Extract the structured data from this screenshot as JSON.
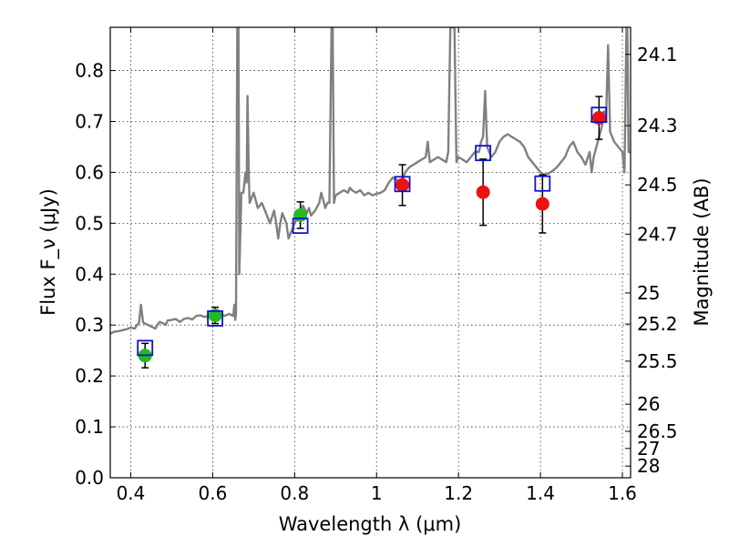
{
  "chart_data": {
    "type": "scatter",
    "xlabel": "Wavelength λ (μm)",
    "ylabel": "Flux F_ν (μJy)",
    "y2label": "Magnitude (AB)",
    "xlim": [
      0.35,
      1.62
    ],
    "ylim": [
      0.0,
      0.885
    ],
    "grid": true,
    "x_ticks": [
      0.4,
      0.6,
      0.8,
      1.0,
      1.2,
      1.4,
      1.6
    ],
    "x_tick_labels": [
      "0.4",
      "0.6",
      "0.8",
      "1",
      "1.2",
      "1.4",
      "1.6"
    ],
    "y_ticks": [
      0.0,
      0.1,
      0.2,
      0.3,
      0.4,
      0.5,
      0.6,
      0.7,
      0.8
    ],
    "y_tick_labels": [
      "0.0",
      "0.1",
      "0.2",
      "0.3",
      "0.4",
      "0.5",
      "0.6",
      "0.7",
      "0.8"
    ],
    "mag_ticks": [
      24.1,
      24.3,
      24.5,
      24.7,
      25,
      25.2,
      25.5,
      26,
      26.5,
      27,
      28
    ],
    "mag_tick_labels": [
      "24.1",
      "24.3",
      "24.5",
      "24.7",
      "25",
      "25.2",
      "25.5",
      "26",
      "26.5",
      "27",
      "28"
    ],
    "model_color": "#808080",
    "model_spectrum": [
      [
        0.35,
        0.283
      ],
      [
        0.36,
        0.287
      ],
      [
        0.37,
        0.288
      ],
      [
        0.38,
        0.29
      ],
      [
        0.39,
        0.292
      ],
      [
        0.4,
        0.295
      ],
      [
        0.41,
        0.293
      ],
      [
        0.415,
        0.3
      ],
      [
        0.42,
        0.304
      ],
      [
        0.425,
        0.34
      ],
      [
        0.43,
        0.305
      ],
      [
        0.44,
        0.301
      ],
      [
        0.45,
        0.297
      ],
      [
        0.46,
        0.293
      ],
      [
        0.465,
        0.3
      ],
      [
        0.47,
        0.306
      ],
      [
        0.48,
        0.303
      ],
      [
        0.485,
        0.3
      ],
      [
        0.49,
        0.309
      ],
      [
        0.5,
        0.31
      ],
      [
        0.51,
        0.312
      ],
      [
        0.52,
        0.306
      ],
      [
        0.53,
        0.312
      ],
      [
        0.54,
        0.314
      ],
      [
        0.55,
        0.311
      ],
      [
        0.56,
        0.318
      ],
      [
        0.57,
        0.319
      ],
      [
        0.58,
        0.316
      ],
      [
        0.59,
        0.318
      ],
      [
        0.6,
        0.32
      ],
      [
        0.61,
        0.318
      ],
      [
        0.62,
        0.321
      ],
      [
        0.63,
        0.318
      ],
      [
        0.64,
        0.322
      ],
      [
        0.645,
        0.32
      ],
      [
        0.65,
        0.318
      ],
      [
        0.653,
        0.34
      ],
      [
        0.655,
        0.31
      ],
      [
        0.657,
        0.32
      ],
      [
        0.66,
        0.885
      ],
      [
        0.663,
        0.885
      ],
      [
        0.665,
        0.4
      ],
      [
        0.67,
        0.56
      ],
      [
        0.675,
        0.56
      ],
      [
        0.68,
        0.6
      ],
      [
        0.683,
        0.58
      ],
      [
        0.685,
        0.75
      ],
      [
        0.688,
        0.6
      ],
      [
        0.69,
        0.54
      ],
      [
        0.7,
        0.56
      ],
      [
        0.71,
        0.53
      ],
      [
        0.72,
        0.54
      ],
      [
        0.73,
        0.52
      ],
      [
        0.74,
        0.5
      ],
      [
        0.75,
        0.525
      ],
      [
        0.755,
        0.5
      ],
      [
        0.76,
        0.47
      ],
      [
        0.765,
        0.5
      ],
      [
        0.77,
        0.52
      ],
      [
        0.78,
        0.5
      ],
      [
        0.785,
        0.47
      ],
      [
        0.79,
        0.48
      ],
      [
        0.8,
        0.5
      ],
      [
        0.81,
        0.515
      ],
      [
        0.82,
        0.535
      ],
      [
        0.83,
        0.52
      ],
      [
        0.835,
        0.53
      ],
      [
        0.84,
        0.515
      ],
      [
        0.85,
        0.525
      ],
      [
        0.86,
        0.54
      ],
      [
        0.865,
        0.56
      ],
      [
        0.87,
        0.545
      ],
      [
        0.875,
        0.53
      ],
      [
        0.88,
        0.54
      ],
      [
        0.885,
        0.54
      ],
      [
        0.89,
        0.885
      ],
      [
        0.893,
        0.885
      ],
      [
        0.896,
        0.54
      ],
      [
        0.9,
        0.555
      ],
      [
        0.91,
        0.56
      ],
      [
        0.92,
        0.565
      ],
      [
        0.93,
        0.56
      ],
      [
        0.935,
        0.57
      ],
      [
        0.94,
        0.565
      ],
      [
        0.95,
        0.56
      ],
      [
        0.96,
        0.565
      ],
      [
        0.97,
        0.555
      ],
      [
        0.98,
        0.56
      ],
      [
        0.99,
        0.555
      ],
      [
        1.0,
        0.558
      ],
      [
        1.01,
        0.56
      ],
      [
        1.02,
        0.565
      ],
      [
        1.03,
        0.58
      ],
      [
        1.04,
        0.59
      ],
      [
        1.05,
        0.585
      ],
      [
        1.06,
        0.58
      ],
      [
        1.07,
        0.6
      ],
      [
        1.08,
        0.61
      ],
      [
        1.09,
        0.615
      ],
      [
        1.1,
        0.62
      ],
      [
        1.11,
        0.625
      ],
      [
        1.12,
        0.63
      ],
      [
        1.125,
        0.66
      ],
      [
        1.13,
        0.62
      ],
      [
        1.14,
        0.625
      ],
      [
        1.15,
        0.63
      ],
      [
        1.16,
        0.625
      ],
      [
        1.17,
        0.62
      ],
      [
        1.175,
        0.64
      ],
      [
        1.18,
        0.885
      ],
      [
        1.19,
        0.885
      ],
      [
        1.195,
        0.62
      ],
      [
        1.2,
        0.63
      ],
      [
        1.21,
        0.625
      ],
      [
        1.22,
        0.62
      ],
      [
        1.23,
        0.63
      ],
      [
        1.24,
        0.64
      ],
      [
        1.25,
        0.64
      ],
      [
        1.255,
        0.66
      ],
      [
        1.26,
        0.67
      ],
      [
        1.265,
        0.76
      ],
      [
        1.27,
        0.65
      ],
      [
        1.28,
        0.63
      ],
      [
        1.29,
        0.64
      ],
      [
        1.3,
        0.66
      ],
      [
        1.31,
        0.67
      ],
      [
        1.32,
        0.675
      ],
      [
        1.33,
        0.67
      ],
      [
        1.34,
        0.665
      ],
      [
        1.35,
        0.66
      ],
      [
        1.36,
        0.65
      ],
      [
        1.37,
        0.63
      ],
      [
        1.38,
        0.62
      ],
      [
        1.39,
        0.61
      ],
      [
        1.4,
        0.6
      ],
      [
        1.41,
        0.595
      ],
      [
        1.42,
        0.598
      ],
      [
        1.43,
        0.603
      ],
      [
        1.44,
        0.61
      ],
      [
        1.45,
        0.62
      ],
      [
        1.46,
        0.63
      ],
      [
        1.47,
        0.65
      ],
      [
        1.48,
        0.66
      ],
      [
        1.49,
        0.64
      ],
      [
        1.5,
        0.63
      ],
      [
        1.51,
        0.615
      ],
      [
        1.52,
        0.64
      ],
      [
        1.525,
        0.6
      ],
      [
        1.53,
        0.63
      ],
      [
        1.54,
        0.66
      ],
      [
        1.55,
        0.69
      ],
      [
        1.555,
        0.72
      ],
      [
        1.56,
        0.7
      ],
      [
        1.565,
        0.85
      ],
      [
        1.57,
        0.68
      ],
      [
        1.58,
        0.66
      ],
      [
        1.59,
        0.65
      ],
      [
        1.6,
        0.64
      ],
      [
        1.605,
        0.6
      ],
      [
        1.61,
        0.885
      ],
      [
        1.612,
        0.885
      ],
      [
        1.615,
        0.64
      ],
      [
        1.62,
        0.64
      ]
    ],
    "series": [
      {
        "marker": "circle",
        "color": "#22bb22",
        "points": [
          {
            "x": 0.435,
            "y": 0.24,
            "yerr": 0.024
          },
          {
            "x": 0.606,
            "y": 0.319,
            "yerr": 0.016
          },
          {
            "x": 0.814,
            "y": 0.516,
            "yerr": 0.026
          }
        ]
      },
      {
        "marker": "circle",
        "color": "#ee1111",
        "points": [
          {
            "x": 1.063,
            "y": 0.575,
            "yerr": 0.04
          },
          {
            "x": 1.26,
            "y": 0.561,
            "yerr": 0.065
          },
          {
            "x": 1.405,
            "y": 0.538,
            "yerr": 0.057
          },
          {
            "x": 1.543,
            "y": 0.707,
            "yerr": 0.042
          }
        ]
      },
      {
        "marker": "square",
        "color": "#1111cc",
        "points": [
          {
            "x": 0.435,
            "y": 0.255
          },
          {
            "x": 0.606,
            "y": 0.313
          },
          {
            "x": 0.814,
            "y": 0.495
          },
          {
            "x": 1.063,
            "y": 0.577
          },
          {
            "x": 1.26,
            "y": 0.638
          },
          {
            "x": 1.405,
            "y": 0.578
          },
          {
            "x": 1.543,
            "y": 0.713
          }
        ]
      }
    ]
  }
}
